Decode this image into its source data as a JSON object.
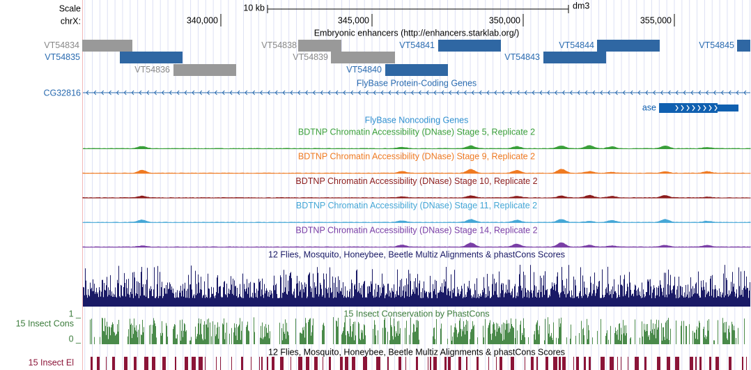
{
  "header": {
    "scale_label": "Scale",
    "chrom_label": "chrX:",
    "scale_bar": "10 kb",
    "assembly": "dm3",
    "positions": [
      "340,000",
      "345,000",
      "350,000",
      "355,000"
    ]
  },
  "enhancers": {
    "title": "Embryonic enhancers (http://enhancers.starklab.org/)",
    "items": [
      {
        "name": "VT54834",
        "color": "#999999"
      },
      {
        "name": "VT54838",
        "color": "#999999"
      },
      {
        "name": "VT54841",
        "color": "#2f67a3"
      },
      {
        "name": "VT54844",
        "color": "#2f67a3"
      },
      {
        "name": "VT54845",
        "color": "#2f67a3"
      },
      {
        "name": "VT54835",
        "color": "#2f67a3"
      },
      {
        "name": "VT54839",
        "color": "#999999"
      },
      {
        "name": "VT54843",
        "color": "#2f67a3"
      },
      {
        "name": "VT54836",
        "color": "#999999"
      },
      {
        "name": "VT54840",
        "color": "#2f67a3"
      }
    ]
  },
  "protein_genes": {
    "title": "FlyBase Protein-Coding Genes",
    "genes": [
      "CG32816",
      "ase"
    ]
  },
  "noncoding": {
    "title": "FlyBase Noncoding Genes"
  },
  "dnase": [
    {
      "title": "BDTNP Chromatin Accessibility (DNase) Stage 5, Replicate 2",
      "color": "#3a9f3a"
    },
    {
      "title": "BDTNP Chromatin Accessibility (DNase) Stage 9, Replicate 2",
      "color": "#ef7a22"
    },
    {
      "title": "BDTNP Chromatin Accessibility (DNase) Stage 10, Replicate 2",
      "color": "#8c1c1c"
    },
    {
      "title": "BDTNP Chromatin Accessibility (DNase) Stage 11, Replicate 2",
      "color": "#45a7d6"
    },
    {
      "title": "BDTNP Chromatin Accessibility (DNase) Stage 14, Replicate 2",
      "color": "#7a3fa6"
    }
  ],
  "multiz": {
    "title": "12 Flies, Mosquito, Honeybee, Beetle Multiz Alignments & phastCons Scores",
    "color": "#1a1a66"
  },
  "phastcons": {
    "title": "15 Insect Conservation by PhastCons",
    "label": "15 Insect Cons",
    "top": "1 _",
    "bottom": "0 _",
    "color": "#4a8a4a"
  },
  "elements": {
    "title": "12 Flies, Mosquito, Honeybee, Beetle Multiz Alignments & phastCons Scores",
    "label": "15 Insect El",
    "color": "#8b1538"
  }
}
